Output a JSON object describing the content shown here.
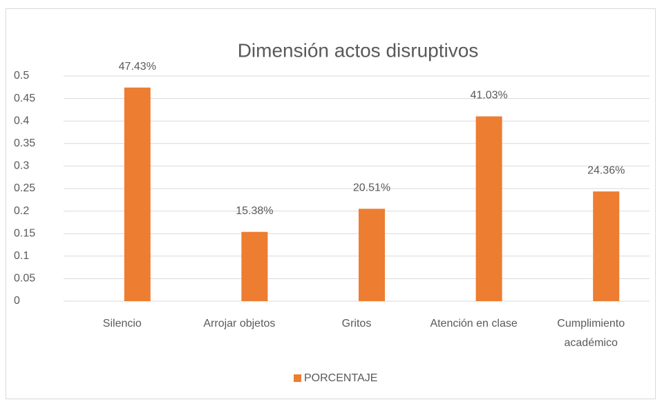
{
  "chart_data": {
    "type": "bar",
    "title": "Dimensión actos disruptivos",
    "categories": [
      "Silencio",
      "Arrojar objetos",
      "Gritos",
      "Atención en clase",
      "Cumplimiento académico"
    ],
    "series": [
      {
        "name": "PORCENTAJE",
        "color": "#ed7d31",
        "values": [
          0.4743,
          0.1538,
          0.2051,
          0.4103,
          0.2436
        ],
        "value_labels": [
          "47.43%",
          "15.38%",
          "20.51%",
          "41.03%",
          "24.36%"
        ]
      }
    ],
    "ylim": [
      0,
      0.5
    ],
    "yticks": [
      0,
      0.05,
      0.1,
      0.15,
      0.2,
      0.25,
      0.3,
      0.35,
      0.4,
      0.45,
      0.5
    ],
    "grid": true,
    "legend": "bottom"
  }
}
